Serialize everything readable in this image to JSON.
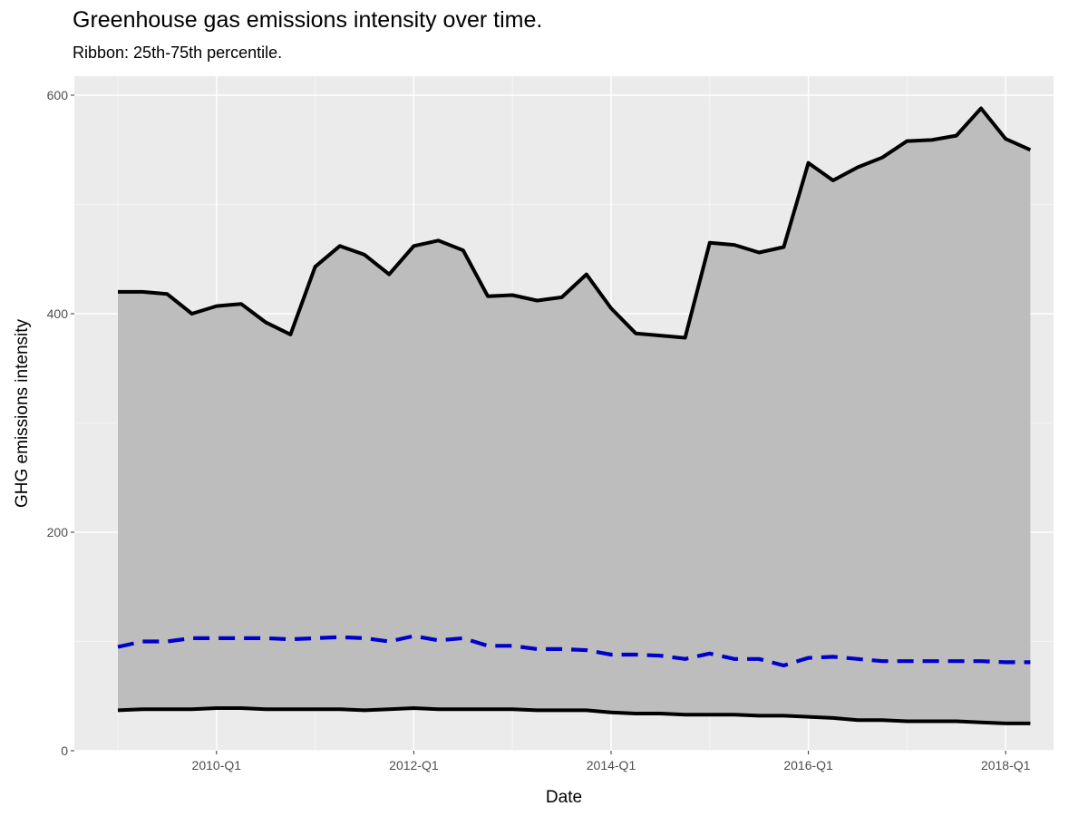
{
  "chart_data": {
    "type": "line",
    "title": "Greenhouse gas emissions intensity over time.",
    "subtitle": "Ribbon: 25th-75th percentile.",
    "xlabel": "Date",
    "ylabel": "GHG emissions intensity",
    "x_tick_labels": [
      "2010-Q1",
      "2012-Q1",
      "2014-Q1",
      "2016-Q1",
      "2018-Q1"
    ],
    "y_ticks": [
      0,
      200,
      400,
      600
    ],
    "ylim": [
      0,
      600
    ],
    "x": [
      "2009-Q1",
      "2009-Q2",
      "2009-Q3",
      "2009-Q4",
      "2010-Q1",
      "2010-Q2",
      "2010-Q3",
      "2010-Q4",
      "2011-Q1",
      "2011-Q2",
      "2011-Q3",
      "2011-Q4",
      "2012-Q1",
      "2012-Q2",
      "2012-Q3",
      "2012-Q4",
      "2013-Q1",
      "2013-Q2",
      "2013-Q3",
      "2013-Q4",
      "2014-Q1",
      "2014-Q2",
      "2014-Q3",
      "2014-Q4",
      "2015-Q1",
      "2015-Q2",
      "2015-Q3",
      "2015-Q4",
      "2016-Q1",
      "2016-Q2",
      "2016-Q3",
      "2016-Q4",
      "2017-Q1",
      "2017-Q2",
      "2017-Q3",
      "2017-Q4",
      "2018-Q1",
      "2018-Q2"
    ],
    "grid": true,
    "background": "#ebebeb",
    "series": [
      {
        "role": "upper",
        "style": "solid",
        "color": "#000000",
        "values": [
          420,
          420,
          418,
          400,
          407,
          409,
          392,
          381,
          443,
          462,
          454,
          436,
          462,
          467,
          458,
          416,
          417,
          412,
          415,
          436,
          405,
          382,
          380,
          378,
          465,
          463,
          456,
          461,
          538,
          522,
          534,
          543,
          558,
          559,
          563,
          588,
          560,
          550
        ]
      },
      {
        "role": "median",
        "style": "dashed",
        "color": "#0000cc",
        "values": [
          95,
          100,
          100,
          103,
          103,
          103,
          103,
          102,
          103,
          104,
          103,
          100,
          105,
          101,
          103,
          96,
          96,
          93,
          93,
          92,
          88,
          88,
          87,
          84,
          89,
          84,
          84,
          78,
          85,
          86,
          84,
          82,
          82,
          82,
          82,
          82,
          81,
          81
        ]
      },
      {
        "role": "lower",
        "style": "solid",
        "color": "#000000",
        "values": [
          37,
          38,
          38,
          38,
          39,
          39,
          38,
          38,
          38,
          38,
          37,
          38,
          39,
          38,
          38,
          38,
          38,
          37,
          37,
          37,
          35,
          34,
          34,
          33,
          33,
          33,
          32,
          32,
          31,
          30,
          28,
          28,
          27,
          27,
          27,
          26,
          25,
          25
        ]
      }
    ],
    "ribbon": {
      "between": [
        "lower",
        "upper"
      ],
      "color": "#bdbdbd"
    }
  }
}
